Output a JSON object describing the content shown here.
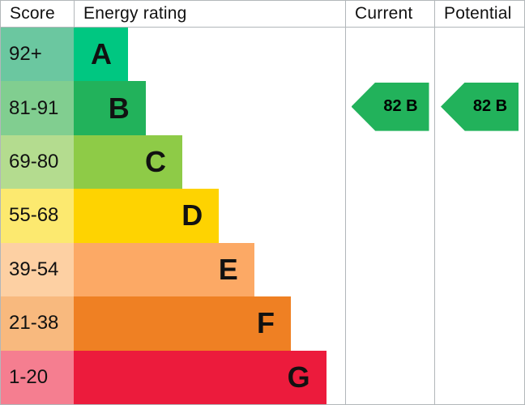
{
  "headers": {
    "score": "Score",
    "energy_rating": "Energy rating",
    "current": "Current",
    "potential": "Potential"
  },
  "chart_data": {
    "type": "bar",
    "title": "Energy rating",
    "categories": [
      "A",
      "B",
      "C",
      "D",
      "E",
      "F",
      "G"
    ],
    "bands": [
      {
        "letter": "A",
        "score": "92+",
        "bar_color": "#00c781",
        "score_color": "#6bc7a0",
        "width_pct": 20
      },
      {
        "letter": "B",
        "score": "81-91",
        "bar_color": "#22b25b",
        "score_color": "#81ce90",
        "width_pct": 26.5
      },
      {
        "letter": "C",
        "score": "69-80",
        "bar_color": "#8ecb47",
        "score_color": "#b4dc8f",
        "width_pct": 40
      },
      {
        "letter": "D",
        "score": "55-68",
        "bar_color": "#fed301",
        "score_color": "#fce96f",
        "width_pct": 53.5
      },
      {
        "letter": "E",
        "score": "39-54",
        "bar_color": "#fca965",
        "score_color": "#fdd0a3",
        "width_pct": 66.5
      },
      {
        "letter": "F",
        "score": "21-38",
        "bar_color": "#ef8023",
        "score_color": "#f8b97e",
        "width_pct": 80
      },
      {
        "letter": "G",
        "score": "1-20",
        "bar_color": "#ec1b3c",
        "score_color": "#f57e90",
        "width_pct": 93
      }
    ],
    "current": {
      "label": "82 B",
      "score": 82,
      "band": "B",
      "band_index": 1,
      "arrow_color": "#22b25b"
    },
    "potential": {
      "label": "82 B",
      "score": 82,
      "band": "B",
      "band_index": 1,
      "arrow_color": "#22b25b"
    }
  },
  "style": {
    "border_color": "#b2b7ba",
    "text_color": "#111111"
  }
}
